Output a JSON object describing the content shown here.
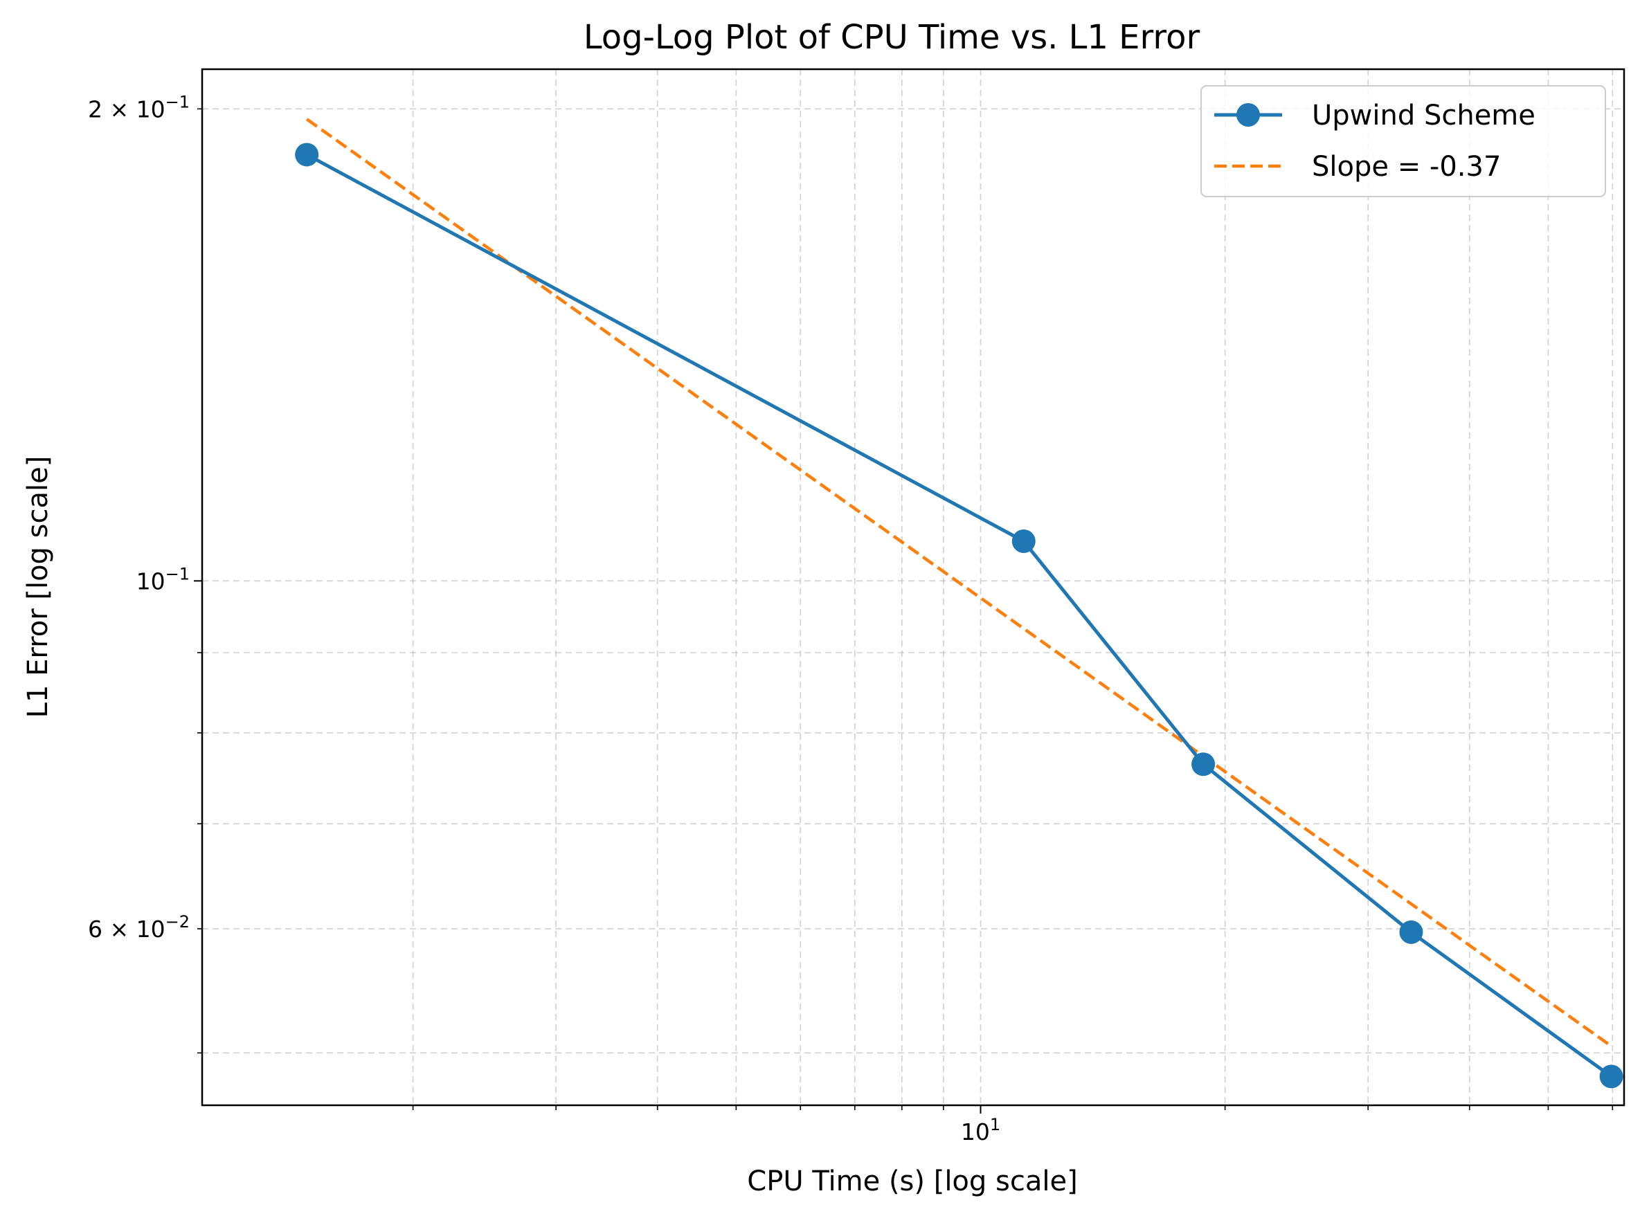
{
  "chart_data": {
    "type": "line",
    "title": "Log-Log Plot of CPU Time vs. L1 Error",
    "xlabel": "CPU Time (s) [log scale]",
    "ylabel": "L1 Error [log scale]",
    "xscale": "log",
    "yscale": "log",
    "xlim": [
      1.1,
      62
    ],
    "ylim": [
      0.0463,
      0.212
    ],
    "grid": true,
    "legend_position": "top-right",
    "x_tick_labels": [
      {
        "base": "10",
        "exp": "1"
      }
    ],
    "y_tick_labels": [
      {
        "mant": "2",
        "base": "10",
        "exp": "−1"
      },
      {
        "mant": "",
        "base": "10",
        "exp": "−1"
      },
      {
        "mant": "6",
        "base": "10",
        "exp": "−2"
      }
    ],
    "series": [
      {
        "name": "Upwind Scheme",
        "style": "solid-line-with-circle-markers",
        "color": "#1f77b4",
        "x": [
          1.48,
          11.3,
          18.8,
          33.9,
          59.8
        ],
        "y": [
          0.187,
          0.106,
          0.0764,
          0.0597,
          0.0483
        ]
      },
      {
        "name": "Slope = -0.37",
        "style": "dashed",
        "color": "#ff7f0e",
        "x": [
          1.48,
          59.8
        ],
        "y": [
          0.197,
          0.0505
        ]
      }
    ]
  }
}
